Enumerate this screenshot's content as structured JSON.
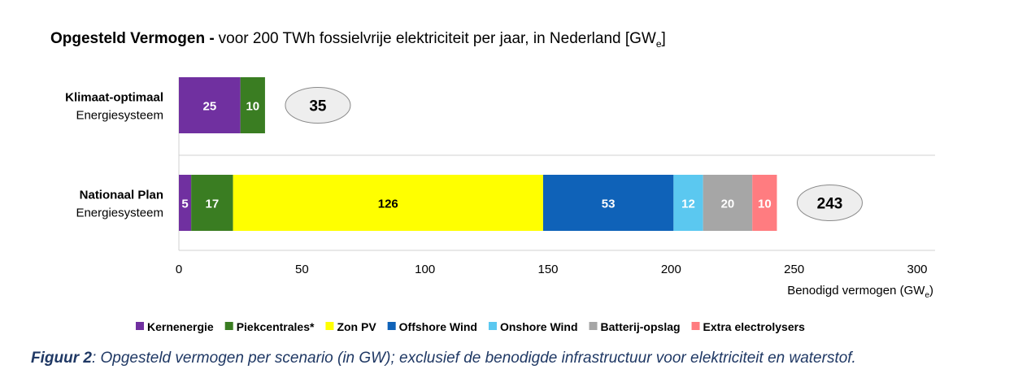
{
  "chart_data": {
    "type": "bar",
    "orientation": "horizontal",
    "stacked": true,
    "title": {
      "bold": "Opgesteld Vermogen -",
      "rest": "voor 200 TWh fossielvrije elektriciteit per jaar, in Nederland [GW",
      "sub": "e",
      "close": "]"
    },
    "categories": [
      {
        "line1": "Klimaat-optimaal",
        "line2": "Energiesysteem",
        "total": "35"
      },
      {
        "line1": "Nationaal Plan",
        "line2": "Energiesysteem",
        "total": "243"
      }
    ],
    "series": [
      {
        "name": "Kernenergie",
        "color": "#7030a0",
        "text_color": "#ffffff",
        "values": [
          25,
          5
        ]
      },
      {
        "name": "Piekcentrales*",
        "color": "#3a7d22",
        "text_color": "#ffffff",
        "values": [
          10,
          17
        ]
      },
      {
        "name": "Zon PV",
        "color": "#ffff00",
        "text_color": "#000000",
        "values": [
          0,
          126
        ]
      },
      {
        "name": "Offshore Wind",
        "color": "#0f62b8",
        "text_color": "#ffffff",
        "values": [
          0,
          53
        ]
      },
      {
        "name": "Onshore Wind",
        "color": "#5bc8f0",
        "text_color": "#ffffff",
        "values": [
          0,
          12
        ]
      },
      {
        "name": "Batterij-opslag",
        "color": "#a6a6a6",
        "text_color": "#ffffff",
        "values": [
          0,
          20
        ]
      },
      {
        "name": "Extra electrolysers",
        "color": "#ff7c80",
        "text_color": "#ffffff",
        "values": [
          0,
          10
        ]
      }
    ],
    "xlim": [
      0,
      300
    ],
    "xticks": [
      "0",
      "50",
      "100",
      "150",
      "200",
      "250",
      "300"
    ],
    "xlabel": {
      "main": "Benodigd vermogen (GW",
      "sub": "e",
      "close": ")"
    },
    "legend_position": "bottom"
  },
  "caption": {
    "bold": "Figuur 2",
    "text": ": Opgesteld vermogen per scenario (in GW); exclusief de benodigde infrastructuur voor elektriciteit en waterstof."
  }
}
